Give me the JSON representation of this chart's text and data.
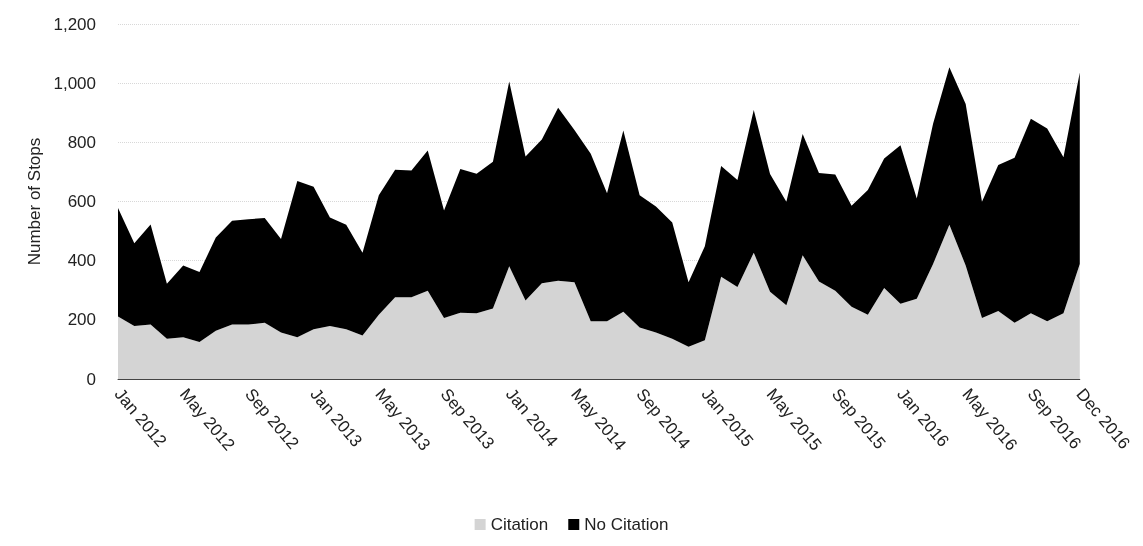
{
  "chart_data": {
    "type": "area",
    "stacked": true,
    "ylabel": "Number of Stops",
    "categories": [
      "Jan 2012",
      null,
      null,
      null,
      "May 2012",
      null,
      null,
      null,
      "Sep 2012",
      null,
      null,
      null,
      "Jan 2013",
      null,
      null,
      null,
      "May 2013",
      null,
      null,
      null,
      "Sep 2013",
      null,
      null,
      null,
      "Jan 2014",
      null,
      null,
      null,
      "May 2014",
      null,
      null,
      null,
      "Sep 2014",
      null,
      null,
      null,
      "Jan 2015",
      null,
      null,
      null,
      "May 2015",
      null,
      null,
      null,
      "Sep 2015",
      null,
      null,
      null,
      "Jan 2016",
      null,
      null,
      null,
      "May 2016",
      null,
      null,
      null,
      "Sep 2016",
      null,
      null,
      "Dec 2016"
    ],
    "series": [
      {
        "name": "Citation",
        "color": "#d4d4d4",
        "values": [
          211,
          179,
          184,
          136,
          141,
          125,
          163,
          184,
          184,
          190,
          157,
          141,
          168,
          179,
          168,
          147,
          217,
          276,
          276,
          298,
          206,
          224,
          222,
          238,
          381,
          265,
          324,
          332,
          327,
          195,
          195,
          227,
          174,
          157,
          136,
          109,
          131,
          346,
          311,
          427,
          295,
          249,
          418,
          330,
          298,
          244,
          217,
          308,
          254,
          271,
          389,
          521,
          384,
          206,
          230,
          190,
          222,
          195,
          222,
          389
        ]
      },
      {
        "name": "No Citation",
        "color": "#000000",
        "values": [
          367,
          280,
          338,
          186,
          243,
          237,
          315,
          351,
          356,
          354,
          316,
          528,
          482,
          367,
          353,
          280,
          404,
          431,
          429,
          474,
          364,
          486,
          472,
          496,
          625,
          487,
          486,
          585,
          515,
          566,
          433,
          613,
          447,
          426,
          393,
          218,
          318,
          374,
          362,
          482,
          398,
          350,
          410,
          366,
          393,
          342,
          422,
          437,
          536,
          339,
          474,
          533,
          546,
          393,
          493,
          558,
          658,
          652,
          528,
          647
        ]
      }
    ],
    "ylim": [
      0,
      1200
    ],
    "yticks": [
      0,
      200,
      400,
      600,
      800,
      {
        "value": 1000,
        "label": "1,000"
      },
      {
        "value": 1200,
        "label": "1,200"
      }
    ],
    "grid": "y",
    "legend": "bottom"
  }
}
